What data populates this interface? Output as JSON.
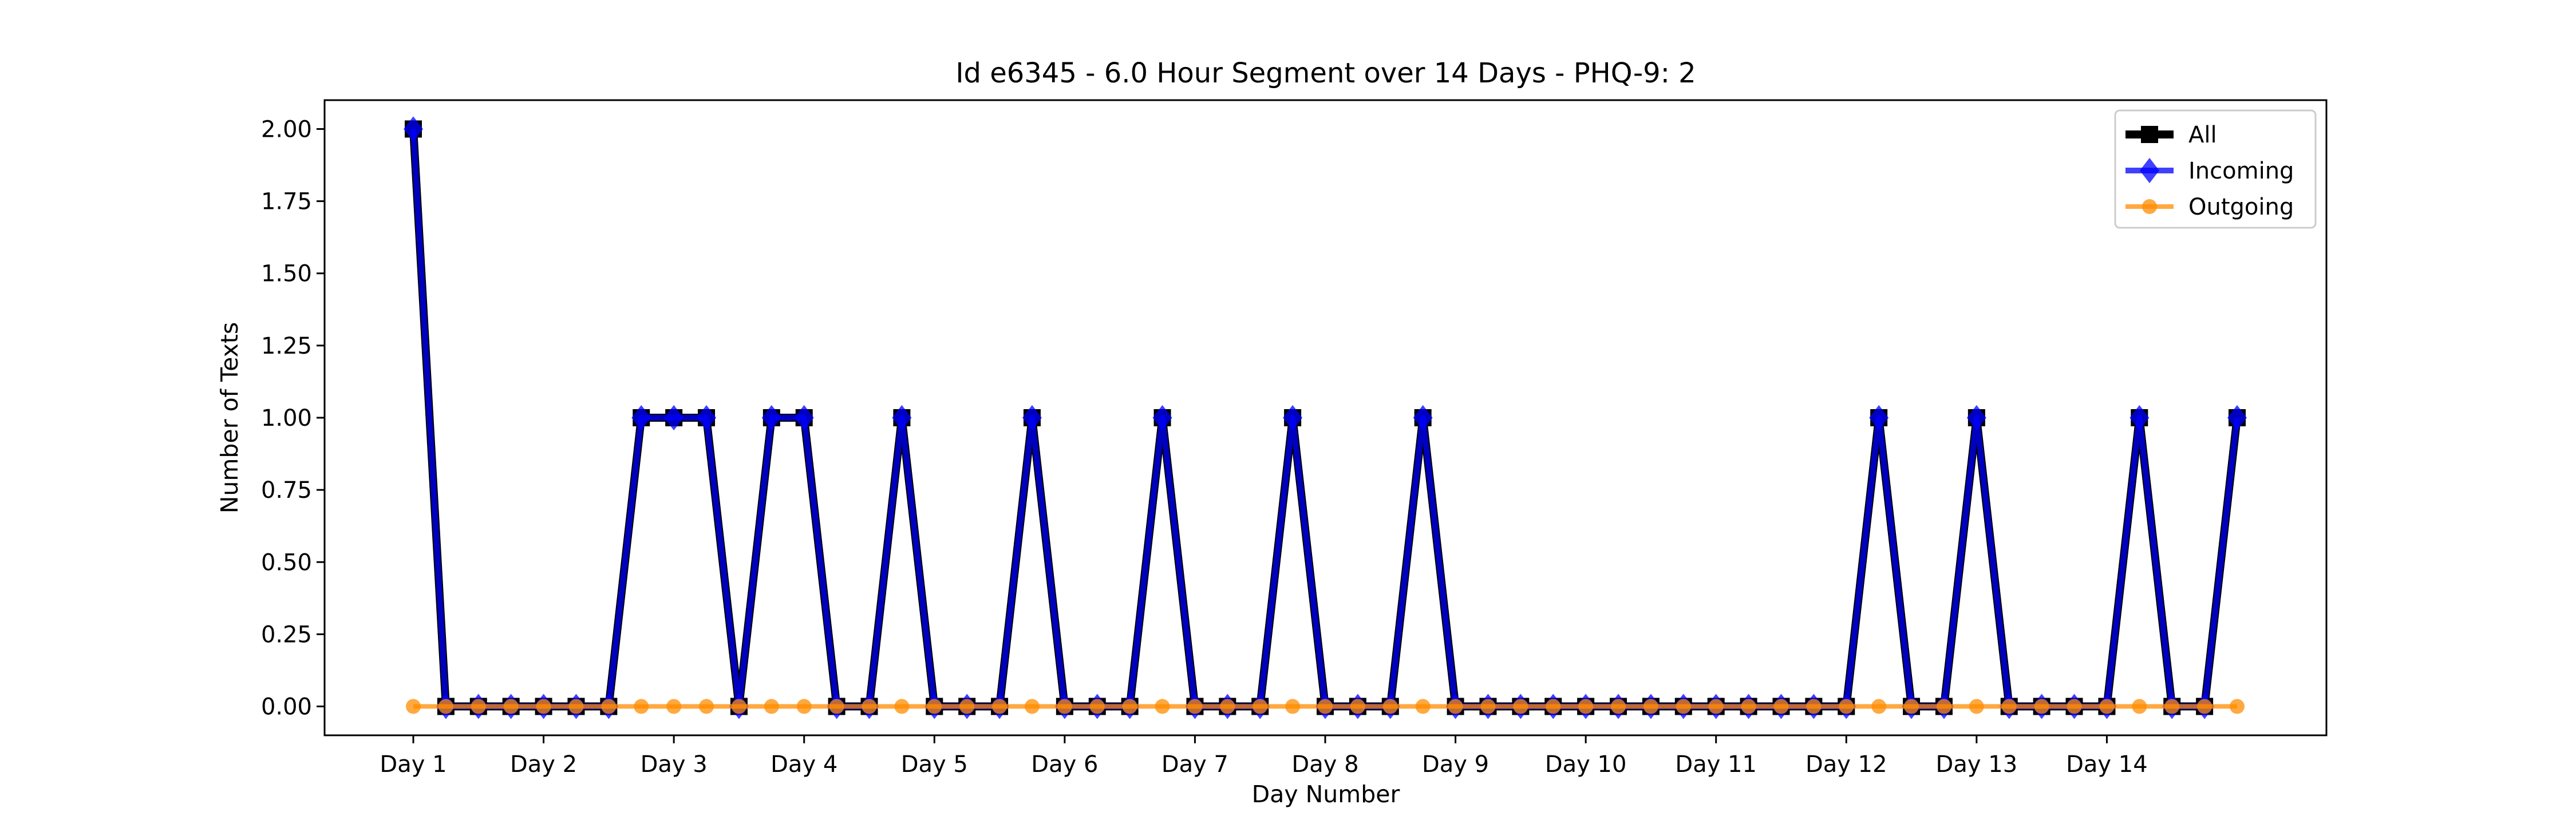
{
  "chart_data": {
    "type": "line",
    "title": "Id e6345 - 6.0 Hour Segment over 14 Days - PHQ-9: 2",
    "xlabel": "Day Number",
    "ylabel": "Number of Texts",
    "ylim": [
      -0.1,
      2.1
    ],
    "yticks": [
      "0.00",
      "0.25",
      "0.50",
      "0.75",
      "1.00",
      "1.25",
      "1.50",
      "1.75",
      "2.00"
    ],
    "xticks": [
      "Day 1",
      "Day 2",
      "Day 3",
      "Day 4",
      "Day 5",
      "Day 6",
      "Day 7",
      "Day 8",
      "Day 9",
      "Day 10",
      "Day 11",
      "Day 12",
      "Day 13",
      "Day 14"
    ],
    "legend_position": "top-right",
    "series": [
      {
        "name": "All",
        "color": "#000000",
        "marker": "square",
        "values": [
          2,
          0,
          0,
          0,
          0,
          0,
          0,
          1,
          1,
          1,
          0,
          1,
          1,
          0,
          0,
          1,
          0,
          0,
          0,
          1,
          0,
          0,
          0,
          1,
          0,
          0,
          0,
          1,
          0,
          0,
          0,
          1,
          0,
          0,
          0,
          0,
          0,
          0,
          0,
          0,
          0,
          0,
          0,
          0,
          0,
          1,
          0,
          0,
          1,
          0,
          0,
          0,
          0,
          1,
          0,
          0,
          1
        ]
      },
      {
        "name": "Incoming",
        "color": "#0000ff",
        "marker": "diamond",
        "values": [
          2,
          0,
          0,
          0,
          0,
          0,
          0,
          1,
          1,
          1,
          0,
          1,
          1,
          0,
          0,
          1,
          0,
          0,
          0,
          1,
          0,
          0,
          0,
          1,
          0,
          0,
          0,
          1,
          0,
          0,
          0,
          1,
          0,
          0,
          0,
          0,
          0,
          0,
          0,
          0,
          0,
          0,
          0,
          0,
          0,
          1,
          0,
          0,
          1,
          0,
          0,
          0,
          0,
          1,
          0,
          0,
          1
        ]
      },
      {
        "name": "Outgoing",
        "color": "#ff8c00",
        "marker": "circle",
        "values": [
          0,
          0,
          0,
          0,
          0,
          0,
          0,
          0,
          0,
          0,
          0,
          0,
          0,
          0,
          0,
          0,
          0,
          0,
          0,
          0,
          0,
          0,
          0,
          0,
          0,
          0,
          0,
          0,
          0,
          0,
          0,
          0,
          0,
          0,
          0,
          0,
          0,
          0,
          0,
          0,
          0,
          0,
          0,
          0,
          0,
          0,
          0,
          0,
          0,
          0,
          0,
          0,
          0,
          0,
          0,
          0,
          0
        ]
      }
    ]
  }
}
